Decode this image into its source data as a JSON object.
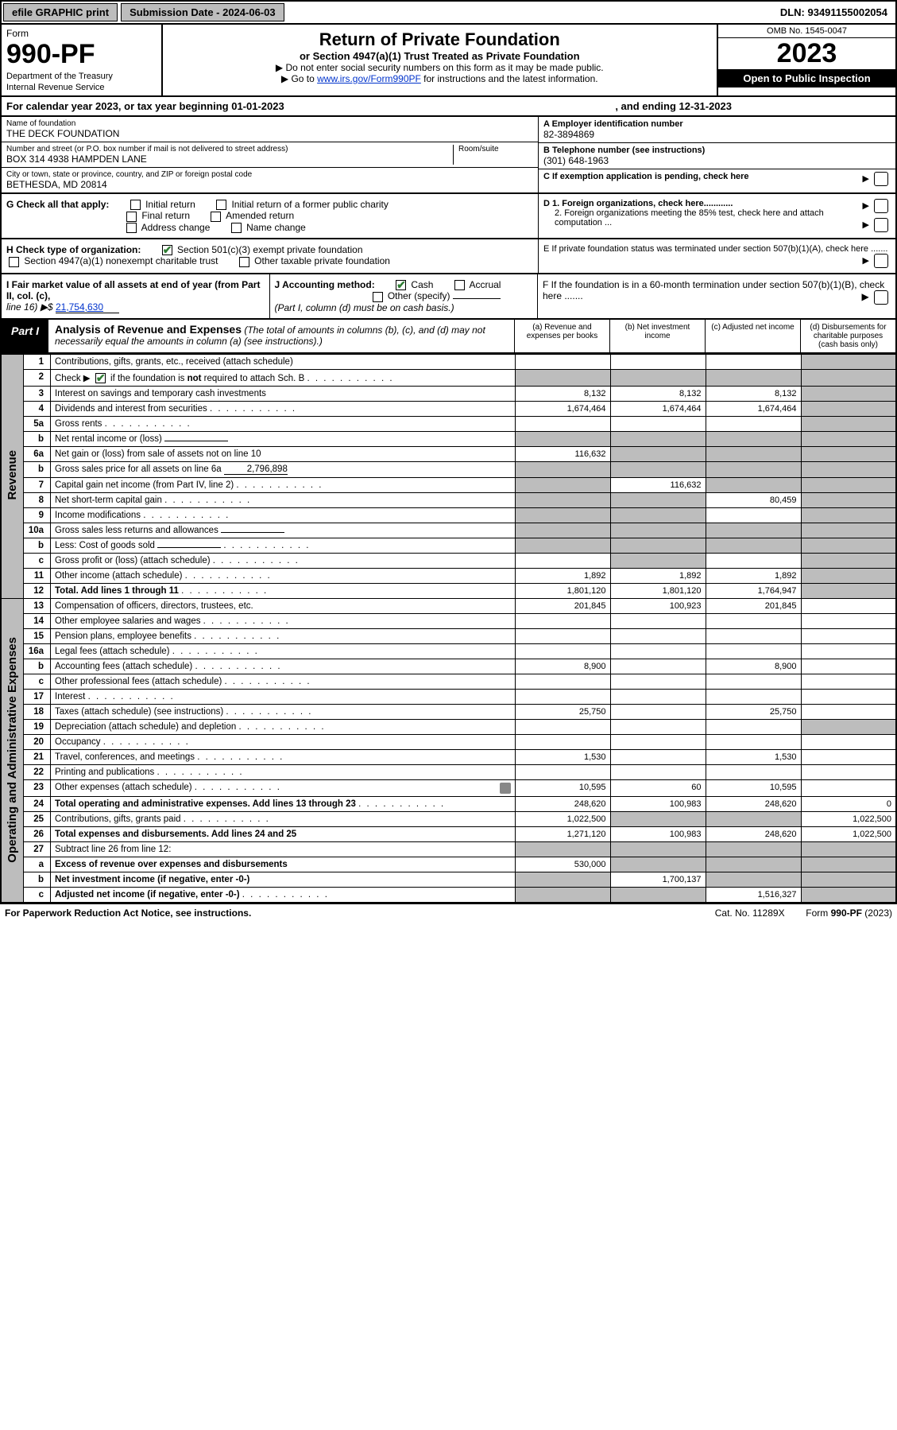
{
  "topbar": {
    "efile": "efile GRAPHIC print",
    "submission_label": "Submission Date - 2024-06-03",
    "dln": "DLN: 93491155002054"
  },
  "header": {
    "form_label": "Form",
    "form_no": "990-PF",
    "dept": "Department of the Treasury",
    "irs": "Internal Revenue Service",
    "title": "Return of Private Foundation",
    "subtitle": "or Section 4947(a)(1) Trust Treated as Private Foundation",
    "instr1": "▶ Do not enter social security numbers on this form as it may be made public.",
    "instr2_pre": "▶ Go to ",
    "instr2_link": "www.irs.gov/Form990PF",
    "instr2_post": " for instructions and the latest information.",
    "omb": "OMB No. 1545-0047",
    "year": "2023",
    "inspect": "Open to Public Inspection"
  },
  "calendar": {
    "text1": "For calendar year 2023, or tax year beginning 01-01-2023",
    "text2": ", and ending 12-31-2023"
  },
  "id": {
    "name_lbl": "Name of foundation",
    "name": "THE DECK FOUNDATION",
    "addr_lbl": "Number and street (or P.O. box number if mail is not delivered to street address)",
    "addr": "BOX 314 4938 HAMPDEN LANE",
    "room_lbl": "Room/suite",
    "city_lbl": "City or town, state or province, country, and ZIP or foreign postal code",
    "city": "BETHESDA, MD  20814",
    "a_lbl": "A Employer identification number",
    "a_val": "82-3894869",
    "b_lbl": "B Telephone number (see instructions)",
    "b_val": "(301) 648-1963",
    "c_lbl": "C If exemption application is pending, check here"
  },
  "g": {
    "label": "G Check all that apply:",
    "initial": "Initial return",
    "initial_former": "Initial return of a former public charity",
    "final": "Final return",
    "amended": "Amended return",
    "addr_change": "Address change",
    "name_change": "Name change"
  },
  "h": {
    "label": "H Check type of organization:",
    "s501c3": "Section 501(c)(3) exempt private foundation",
    "s4947": "Section 4947(a)(1) nonexempt charitable trust",
    "other_tax": "Other taxable private foundation"
  },
  "d": {
    "d1": "D 1. Foreign organizations, check here............",
    "d2": "2. Foreign organizations meeting the 85% test, check here and attach computation ...",
    "e": "E  If private foundation status was terminated under section 507(b)(1)(A), check here .......",
    "f": "F  If the foundation is in a 60-month termination under section 507(b)(1)(B), check here ......."
  },
  "i": {
    "label": "I Fair market value of all assets at end of year (from Part II, col. (c),",
    "line16": "line 16) ▶$",
    "value": "21,754,630"
  },
  "j": {
    "label": "J Accounting method:",
    "cash": "Cash",
    "accrual": "Accrual",
    "other": "Other (specify)",
    "note": "(Part I, column (d) must be on cash basis.)"
  },
  "part1": {
    "label": "Part I",
    "title": "Analysis of Revenue and Expenses",
    "subtitle": "(The total of amounts in columns (b), (c), and (d) may not necessarily equal the amounts in column (a) (see instructions).)",
    "col_a": "(a)  Revenue and expenses per books",
    "col_b": "(b)  Net investment income",
    "col_c": "(c)  Adjusted net income",
    "col_d": "(d)  Disbursements for charitable purposes (cash basis only)"
  },
  "side": {
    "revenue": "Revenue",
    "expenses": "Operating and Administrative Expenses"
  },
  "rows": [
    {
      "n": "1",
      "t": "Contributions, gifts, grants, etc., received (attach schedule)",
      "a": "",
      "b": "",
      "c": "",
      "d": "",
      "d_shade": true
    },
    {
      "n": "2",
      "t": "Check ▶ ☑ if the foundation is not required to attach Sch. B",
      "dots": true,
      "a": "",
      "b": "",
      "c": "",
      "d": "",
      "all_shade": true
    },
    {
      "n": "3",
      "t": "Interest on savings and temporary cash investments",
      "a": "8,132",
      "b": "8,132",
      "c": "8,132",
      "d": "",
      "d_shade": true
    },
    {
      "n": "4",
      "t": "Dividends and interest from securities",
      "dots": true,
      "a": "1,674,464",
      "b": "1,674,464",
      "c": "1,674,464",
      "d": "",
      "d_shade": true
    },
    {
      "n": "5a",
      "t": "Gross rents",
      "dots": true,
      "a": "",
      "b": "",
      "c": "",
      "d": "",
      "d_shade": true
    },
    {
      "n": "b",
      "t": "Net rental income or (loss)",
      "inline_val": "",
      "a": "",
      "b": "",
      "c": "",
      "d": "",
      "all_shade": true
    },
    {
      "n": "6a",
      "t": "Net gain or (loss) from sale of assets not on line 10",
      "a": "116,632",
      "b": "",
      "c": "",
      "d": "",
      "b_shade": true,
      "c_shade": true,
      "d_shade": true
    },
    {
      "n": "b",
      "t": "Gross sales price for all assets on line 6a",
      "inline_val": "2,796,898",
      "a": "",
      "b": "",
      "c": "",
      "d": "",
      "all_shade": true
    },
    {
      "n": "7",
      "t": "Capital gain net income (from Part IV, line 2)",
      "dots": true,
      "a": "",
      "b": "116,632",
      "c": "",
      "d": "",
      "a_shade": true,
      "c_shade": true,
      "d_shade": true
    },
    {
      "n": "8",
      "t": "Net short-term capital gain",
      "dots": true,
      "a": "",
      "b": "",
      "c": "80,459",
      "d": "",
      "a_shade": true,
      "b_shade": true,
      "d_shade": true
    },
    {
      "n": "9",
      "t": "Income modifications",
      "dots": true,
      "a": "",
      "b": "",
      "c": "",
      "d": "",
      "a_shade": true,
      "b_shade": true,
      "d_shade": true
    },
    {
      "n": "10a",
      "t": "Gross sales less returns and allowances",
      "inline_val": "",
      "a": "",
      "b": "",
      "c": "",
      "d": "",
      "all_shade": true
    },
    {
      "n": "b",
      "t": "Less: Cost of goods sold",
      "dots": true,
      "inline_val": "",
      "a": "",
      "b": "",
      "c": "",
      "d": "",
      "all_shade": true
    },
    {
      "n": "c",
      "t": "Gross profit or (loss) (attach schedule)",
      "dots": true,
      "a": "",
      "b": "",
      "c": "",
      "d": "",
      "b_shade": true,
      "d_shade": true
    },
    {
      "n": "11",
      "t": "Other income (attach schedule)",
      "dots": true,
      "a": "1,892",
      "b": "1,892",
      "c": "1,892",
      "d": "",
      "d_shade": true
    },
    {
      "n": "12",
      "t": "Total. Add lines 1 through 11",
      "bold": true,
      "dots": true,
      "a": "1,801,120",
      "b": "1,801,120",
      "c": "1,764,947",
      "d": "",
      "d_shade": true
    },
    {
      "n": "13",
      "t": "Compensation of officers, directors, trustees, etc.",
      "a": "201,845",
      "b": "100,923",
      "c": "201,845",
      "d": ""
    },
    {
      "n": "14",
      "t": "Other employee salaries and wages",
      "dots": true,
      "a": "",
      "b": "",
      "c": "",
      "d": ""
    },
    {
      "n": "15",
      "t": "Pension plans, employee benefits",
      "dots": true,
      "a": "",
      "b": "",
      "c": "",
      "d": ""
    },
    {
      "n": "16a",
      "t": "Legal fees (attach schedule)",
      "dots": true,
      "a": "",
      "b": "",
      "c": "",
      "d": ""
    },
    {
      "n": "b",
      "t": "Accounting fees (attach schedule)",
      "dots": true,
      "a": "8,900",
      "b": "",
      "c": "8,900",
      "d": ""
    },
    {
      "n": "c",
      "t": "Other professional fees (attach schedule)",
      "dots": true,
      "a": "",
      "b": "",
      "c": "",
      "d": ""
    },
    {
      "n": "17",
      "t": "Interest",
      "dots": true,
      "a": "",
      "b": "",
      "c": "",
      "d": ""
    },
    {
      "n": "18",
      "t": "Taxes (attach schedule) (see instructions)",
      "dots": true,
      "a": "25,750",
      "b": "",
      "c": "25,750",
      "d": ""
    },
    {
      "n": "19",
      "t": "Depreciation (attach schedule) and depletion",
      "dots": true,
      "a": "",
      "b": "",
      "c": "",
      "d": "",
      "d_shade": true
    },
    {
      "n": "20",
      "t": "Occupancy",
      "dots": true,
      "a": "",
      "b": "",
      "c": "",
      "d": ""
    },
    {
      "n": "21",
      "t": "Travel, conferences, and meetings",
      "dots": true,
      "a": "1,530",
      "b": "",
      "c": "1,530",
      "d": ""
    },
    {
      "n": "22",
      "t": "Printing and publications",
      "dots": true,
      "a": "",
      "b": "",
      "c": "",
      "d": ""
    },
    {
      "n": "23",
      "t": "Other expenses (attach schedule)",
      "dots": true,
      "icon": true,
      "a": "10,595",
      "b": "60",
      "c": "10,595",
      "d": ""
    },
    {
      "n": "24",
      "t": "Total operating and administrative expenses. Add lines 13 through 23",
      "bold": true,
      "dots": true,
      "a": "248,620",
      "b": "100,983",
      "c": "248,620",
      "d": "0"
    },
    {
      "n": "25",
      "t": "Contributions, gifts, grants paid",
      "dots": true,
      "a": "1,022,500",
      "b": "",
      "c": "",
      "d": "1,022,500",
      "b_shade": true,
      "c_shade": true
    },
    {
      "n": "26",
      "t": "Total expenses and disbursements. Add lines 24 and 25",
      "bold": true,
      "a": "1,271,120",
      "b": "100,983",
      "c": "248,620",
      "d": "1,022,500"
    },
    {
      "n": "27",
      "t": "Subtract line 26 from line 12:",
      "a": "",
      "b": "",
      "c": "",
      "d": "",
      "all_shade": true
    },
    {
      "n": "a",
      "t": "Excess of revenue over expenses and disbursements",
      "bold": true,
      "a": "530,000",
      "b": "",
      "c": "",
      "d": "",
      "b_shade": true,
      "c_shade": true,
      "d_shade": true
    },
    {
      "n": "b",
      "t": "Net investment income (if negative, enter -0-)",
      "bold": true,
      "a": "",
      "b": "1,700,137",
      "c": "",
      "d": "",
      "a_shade": true,
      "c_shade": true,
      "d_shade": true
    },
    {
      "n": "c",
      "t": "Adjusted net income (if negative, enter -0-)",
      "bold": true,
      "dots": true,
      "a": "",
      "b": "",
      "c": "1,516,327",
      "d": "",
      "a_shade": true,
      "b_shade": true,
      "d_shade": true
    }
  ],
  "footer": {
    "left": "For Paperwork Reduction Act Notice, see instructions.",
    "mid": "Cat. No. 11289X",
    "right": "Form 990-PF (2023)"
  }
}
